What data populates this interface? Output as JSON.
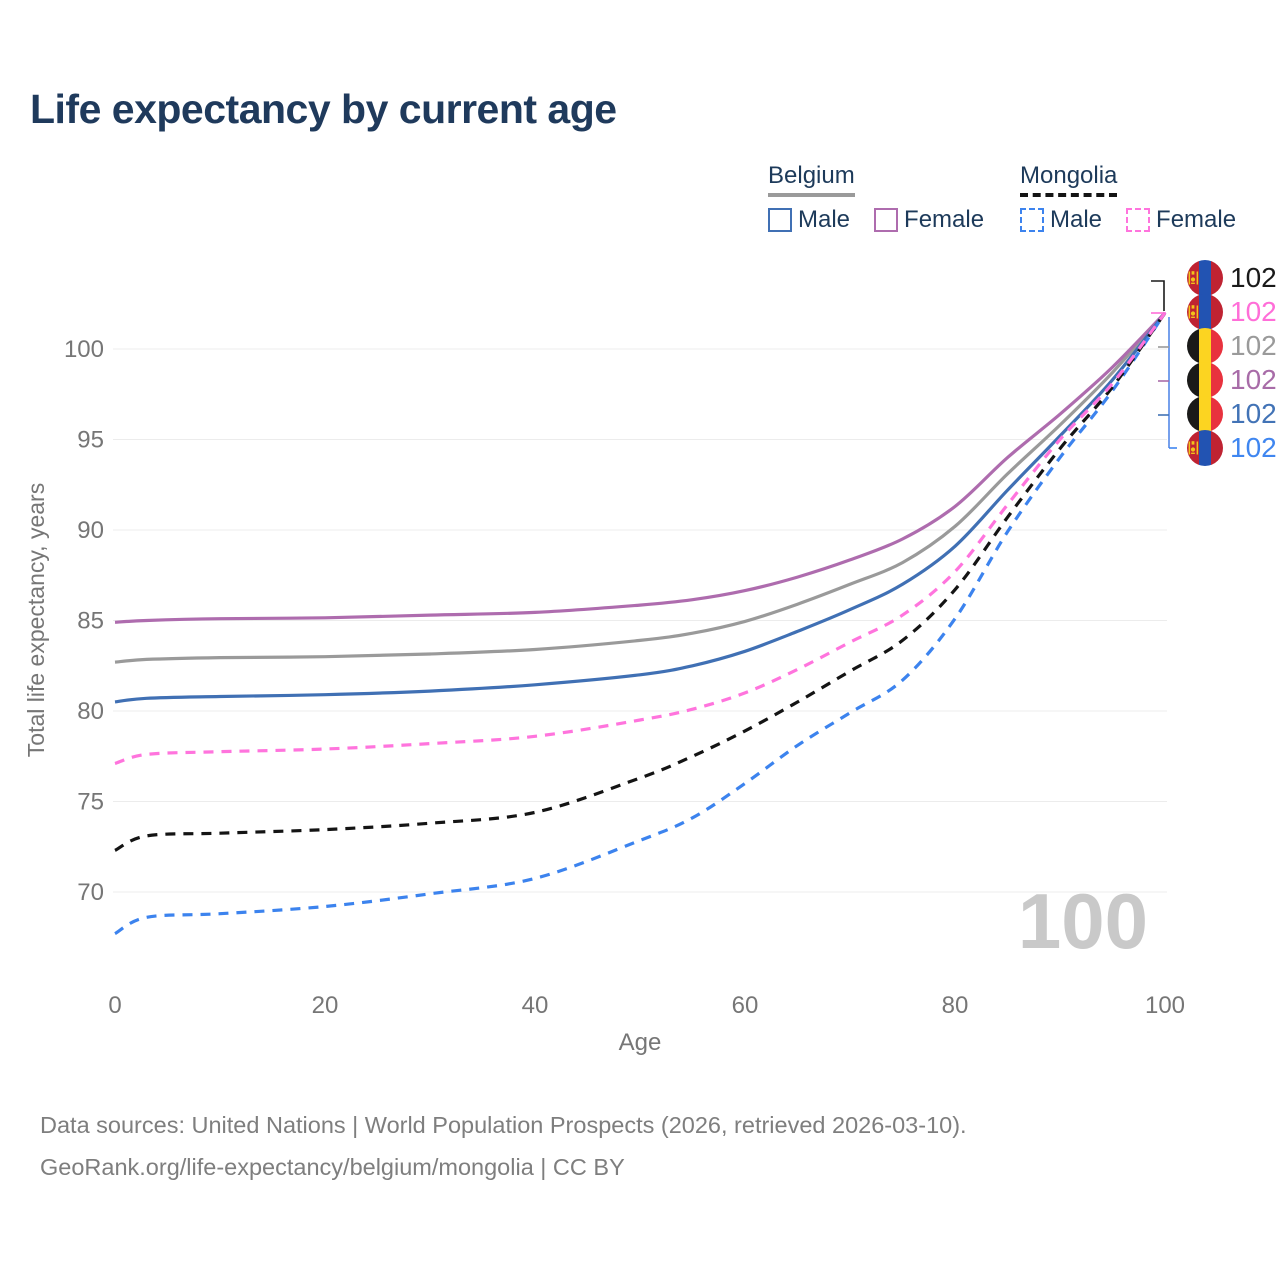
{
  "page": {
    "title": "Life expectancy by current age",
    "footer_line1": "Data sources: United Nations | World Population Prospects (2026, retrieved 2026-03-10).",
    "footer_line2": "GeoRank.org/life-expectancy/belgium/mongolia | CC BY"
  },
  "legend": {
    "groups": [
      {
        "label": "Belgium",
        "line_style": "solid",
        "underline_color": "#9a9a9a",
        "items": [
          {
            "label": "Male",
            "color": "#4070b4",
            "dashed": false
          },
          {
            "label": "Female",
            "color": "#ae6cae",
            "dashed": false
          }
        ]
      },
      {
        "label": "Mongolia",
        "line_style": "dashed",
        "underline_color": "#141414",
        "items": [
          {
            "label": "Male",
            "color": "#3c83ee",
            "dashed": true
          },
          {
            "label": "Female",
            "color": "#ff74dd",
            "dashed": true
          }
        ]
      }
    ]
  },
  "chart_data": {
    "type": "line",
    "title": "Life expectancy by current age",
    "xlabel": "Age",
    "ylabel": "Total life expectancy, years",
    "watermark": "100",
    "x_ticks": [
      0,
      20,
      40,
      60,
      80,
      100
    ],
    "y_ticks": [
      70,
      75,
      80,
      85,
      90,
      95,
      100
    ],
    "xlim": [
      0,
      100
    ],
    "ylim": [
      66.5,
      103
    ],
    "grid": "horizontal",
    "legend_position": "top-right",
    "ages": [
      0,
      3,
      10,
      20,
      30,
      40,
      50,
      55,
      60,
      65,
      70,
      75,
      80,
      85,
      90,
      95,
      100
    ],
    "series": [
      {
        "id": "belgium-both",
        "name": "Belgium",
        "country": "Belgium",
        "sex": "Both",
        "color": "#9a9a9a",
        "dashed": false,
        "values": [
          82.7,
          82.85,
          82.95,
          83.0,
          83.15,
          83.4,
          83.9,
          84.3,
          84.95,
          85.9,
          87.0,
          88.2,
          90.2,
          93.1,
          95.8,
          98.7,
          102
        ]
      },
      {
        "id": "belgium-female",
        "name": "Belgium Female",
        "country": "Belgium",
        "sex": "Female",
        "color": "#ae6cae",
        "dashed": false,
        "values": [
          84.9,
          85.0,
          85.1,
          85.15,
          85.3,
          85.45,
          85.85,
          86.15,
          86.65,
          87.4,
          88.35,
          89.5,
          91.3,
          94.0,
          96.4,
          99.0,
          102
        ]
      },
      {
        "id": "belgium-male",
        "name": "Belgium Male",
        "country": "Belgium",
        "sex": "Male",
        "color": "#4070b4",
        "dashed": false,
        "values": [
          80.5,
          80.7,
          80.8,
          80.9,
          81.1,
          81.45,
          82.0,
          82.5,
          83.3,
          84.4,
          85.6,
          87.0,
          89.1,
          92.2,
          95.2,
          98.3,
          102
        ]
      },
      {
        "id": "mongolia-male",
        "name": "Mongolia Male",
        "country": "Mongolia",
        "sex": "Male",
        "color": "#3c83ee",
        "dashed": true,
        "values": [
          67.7,
          68.6,
          68.8,
          69.2,
          69.9,
          70.75,
          72.85,
          74.1,
          76.0,
          78.1,
          79.9,
          81.7,
          85.1,
          89.9,
          94.0,
          97.7,
          102
        ]
      },
      {
        "id": "mongolia-both",
        "name": "Mongolia",
        "country": "Mongolia",
        "sex": "Both",
        "color": "#141414",
        "dashed": true,
        "values": [
          72.3,
          73.1,
          73.25,
          73.45,
          73.8,
          74.4,
          76.3,
          77.5,
          78.9,
          80.5,
          82.2,
          83.9,
          86.7,
          90.7,
          94.5,
          97.9,
          102
        ]
      },
      {
        "id": "mongolia-female",
        "name": "Mongolia Female",
        "country": "Mongolia",
        "sex": "Female",
        "color": "#ff74dd",
        "dashed": true,
        "values": [
          77.1,
          77.6,
          77.75,
          77.9,
          78.2,
          78.6,
          79.5,
          80.1,
          81.0,
          82.3,
          83.8,
          85.3,
          87.7,
          91.4,
          95.0,
          98.1,
          102
        ]
      }
    ],
    "end_labels": [
      {
        "series": "Mongolia",
        "flag": "mongolia",
        "text": "102",
        "color": "#1a1a1a"
      },
      {
        "series": "Mongolia Female",
        "flag": "mongolia",
        "text": "102",
        "color": "#ff6ed8"
      },
      {
        "series": "Belgium",
        "flag": "belgium",
        "text": "102",
        "color": "#9a9a9a"
      },
      {
        "series": "Belgium Female",
        "flag": "belgium",
        "text": "102",
        "color": "#a86ca8"
      },
      {
        "series": "Belgium Male",
        "flag": "belgium",
        "text": "102",
        "color": "#4273b6"
      },
      {
        "series": "Mongolia Male",
        "flag": "mongolia",
        "text": "102",
        "color": "#3f86f0"
      }
    ],
    "flag_colors": {
      "belgium": [
        "#1a1a19",
        "#fcd421",
        "#e8323e"
      ],
      "mongolia": [
        "#bf2332",
        "#2253b2",
        "#bf2332"
      ],
      "soyombo_yellow": "#f2c319"
    }
  }
}
